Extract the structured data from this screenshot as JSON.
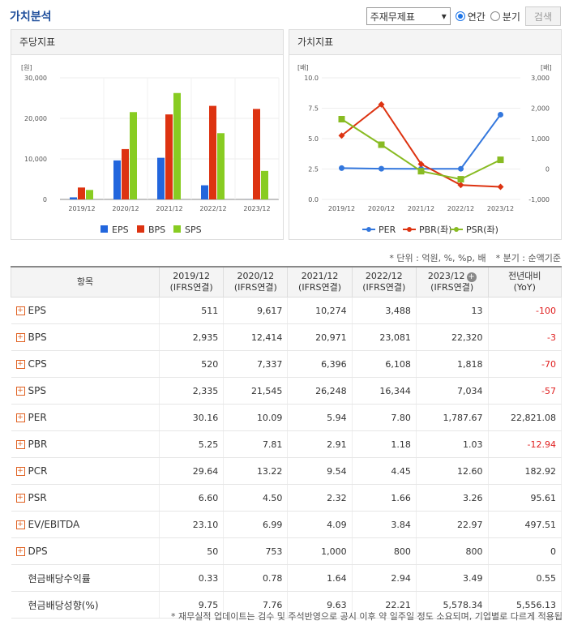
{
  "page": {
    "title": "가치분석"
  },
  "controls": {
    "select_value": "주재무제표",
    "radio_annual": "연간",
    "radio_quarter": "분기",
    "search_button": "검색"
  },
  "panel_left": {
    "title": "주당지표",
    "unit": "[원]"
  },
  "panel_right": {
    "title": "가치지표",
    "unit_left": "[배]",
    "unit_right": "[배]"
  },
  "colors": {
    "eps": "#2266dd",
    "bps": "#dd3311",
    "sps": "#88cc22",
    "per": "#3377dd",
    "pbr": "#dd3311",
    "psr": "#88bb22"
  },
  "chart_data": [
    {
      "type": "bar",
      "title": "주당지표",
      "ylabel": "[원]",
      "categories": [
        "2019/12",
        "2020/12",
        "2021/12",
        "2022/12",
        "2023/12"
      ],
      "yticks": [
        "30,000",
        "20,000",
        "10,000",
        "0"
      ],
      "ylim": [
        0,
        30000
      ],
      "series": [
        {
          "name": "EPS",
          "values": [
            511,
            9617,
            10274,
            3488,
            13
          ]
        },
        {
          "name": "BPS",
          "values": [
            2935,
            12414,
            20971,
            23081,
            22320
          ]
        },
        {
          "name": "SPS",
          "values": [
            2335,
            21545,
            26248,
            16344,
            7034
          ]
        }
      ],
      "legend": "bottom"
    },
    {
      "type": "line",
      "title": "가치지표",
      "categories": [
        "2019/12",
        "2020/12",
        "2021/12",
        "2022/12",
        "2023/12"
      ],
      "yticks_left": [
        "10.0",
        "7.5",
        "5.0",
        "2.5",
        "0.0"
      ],
      "yticks_right": [
        "3,000",
        "2,000",
        "1,000",
        "0",
        "-1,000"
      ],
      "ylim_left": [
        0,
        10
      ],
      "ylim_right": [
        -1000,
        3000
      ],
      "series": [
        {
          "name": "PER",
          "axis": "right",
          "values": [
            30.16,
            10.09,
            5.94,
            7.8,
            1787.67
          ]
        },
        {
          "name": "PBR(좌)",
          "axis": "left",
          "values": [
            5.25,
            7.81,
            2.91,
            1.18,
            1.03
          ]
        },
        {
          "name": "PSR(좌)",
          "axis": "left",
          "values": [
            6.6,
            4.5,
            2.32,
            1.66,
            3.26
          ]
        }
      ],
      "legend": "bottom"
    }
  ],
  "notes": {
    "unit": "* 단위 : 억원, %, %p, 배",
    "quarter": "* 분기 : 순액기준"
  },
  "table": {
    "header_item": "항목",
    "columns": [
      {
        "year": "2019/12",
        "basis": "(IFRS연결)"
      },
      {
        "year": "2020/12",
        "basis": "(IFRS연결)"
      },
      {
        "year": "2021/12",
        "basis": "(IFRS연결)"
      },
      {
        "year": "2022/12",
        "basis": "(IFRS연결)"
      },
      {
        "year": "2023/12",
        "basis": "(IFRS연결)"
      }
    ],
    "yoy": {
      "title": "전년대비",
      "sub": "(YoY)"
    },
    "rows": [
      {
        "label": "EPS",
        "expand": true,
        "values": [
          "511",
          "9,617",
          "10,274",
          "3,488",
          "13"
        ],
        "yoy": "-100",
        "yoy_neg": true
      },
      {
        "label": "BPS",
        "expand": true,
        "values": [
          "2,935",
          "12,414",
          "20,971",
          "23,081",
          "22,320"
        ],
        "yoy": "-3",
        "yoy_neg": true
      },
      {
        "label": "CPS",
        "expand": true,
        "values": [
          "520",
          "7,337",
          "6,396",
          "6,108",
          "1,818"
        ],
        "yoy": "-70",
        "yoy_neg": true
      },
      {
        "label": "SPS",
        "expand": true,
        "values": [
          "2,335",
          "21,545",
          "26,248",
          "16,344",
          "7,034"
        ],
        "yoy": "-57",
        "yoy_neg": true
      },
      {
        "label": "PER",
        "expand": true,
        "values": [
          "30.16",
          "10.09",
          "5.94",
          "7.80",
          "1,787.67"
        ],
        "yoy": "22,821.08",
        "yoy_neg": false
      },
      {
        "label": "PBR",
        "expand": true,
        "values": [
          "5.25",
          "7.81",
          "2.91",
          "1.18",
          "1.03"
        ],
        "yoy": "-12.94",
        "yoy_neg": true
      },
      {
        "label": "PCR",
        "expand": true,
        "values": [
          "29.64",
          "13.22",
          "9.54",
          "4.45",
          "12.60"
        ],
        "yoy": "182.92",
        "yoy_neg": false
      },
      {
        "label": "PSR",
        "expand": true,
        "values": [
          "6.60",
          "4.50",
          "2.32",
          "1.66",
          "3.26"
        ],
        "yoy": "95.61",
        "yoy_neg": false
      },
      {
        "label": "EV/EBITDA",
        "expand": true,
        "values": [
          "23.10",
          "6.99",
          "4.09",
          "3.84",
          "22.97"
        ],
        "yoy": "497.51",
        "yoy_neg": false
      },
      {
        "label": "DPS",
        "expand": true,
        "values": [
          "50",
          "753",
          "1,000",
          "800",
          "800"
        ],
        "yoy": "0",
        "yoy_neg": false
      },
      {
        "label": "현금배당수익률",
        "expand": false,
        "values": [
          "0.33",
          "0.78",
          "1.64",
          "2.94",
          "3.49"
        ],
        "yoy": "0.55",
        "yoy_neg": false
      },
      {
        "label": "현금배당성향(%)",
        "expand": false,
        "values": [
          "9.75",
          "7.76",
          "9.63",
          "22.21",
          "5,578.34"
        ],
        "yoy": "5,556.13",
        "yoy_neg": false
      }
    ]
  },
  "footnote": "* 재무실적 업데이트는 검수 및 주석반영으로 공시 이후 약 일주일 정도 소요되며, 기업별로 다르게 적용됩"
}
